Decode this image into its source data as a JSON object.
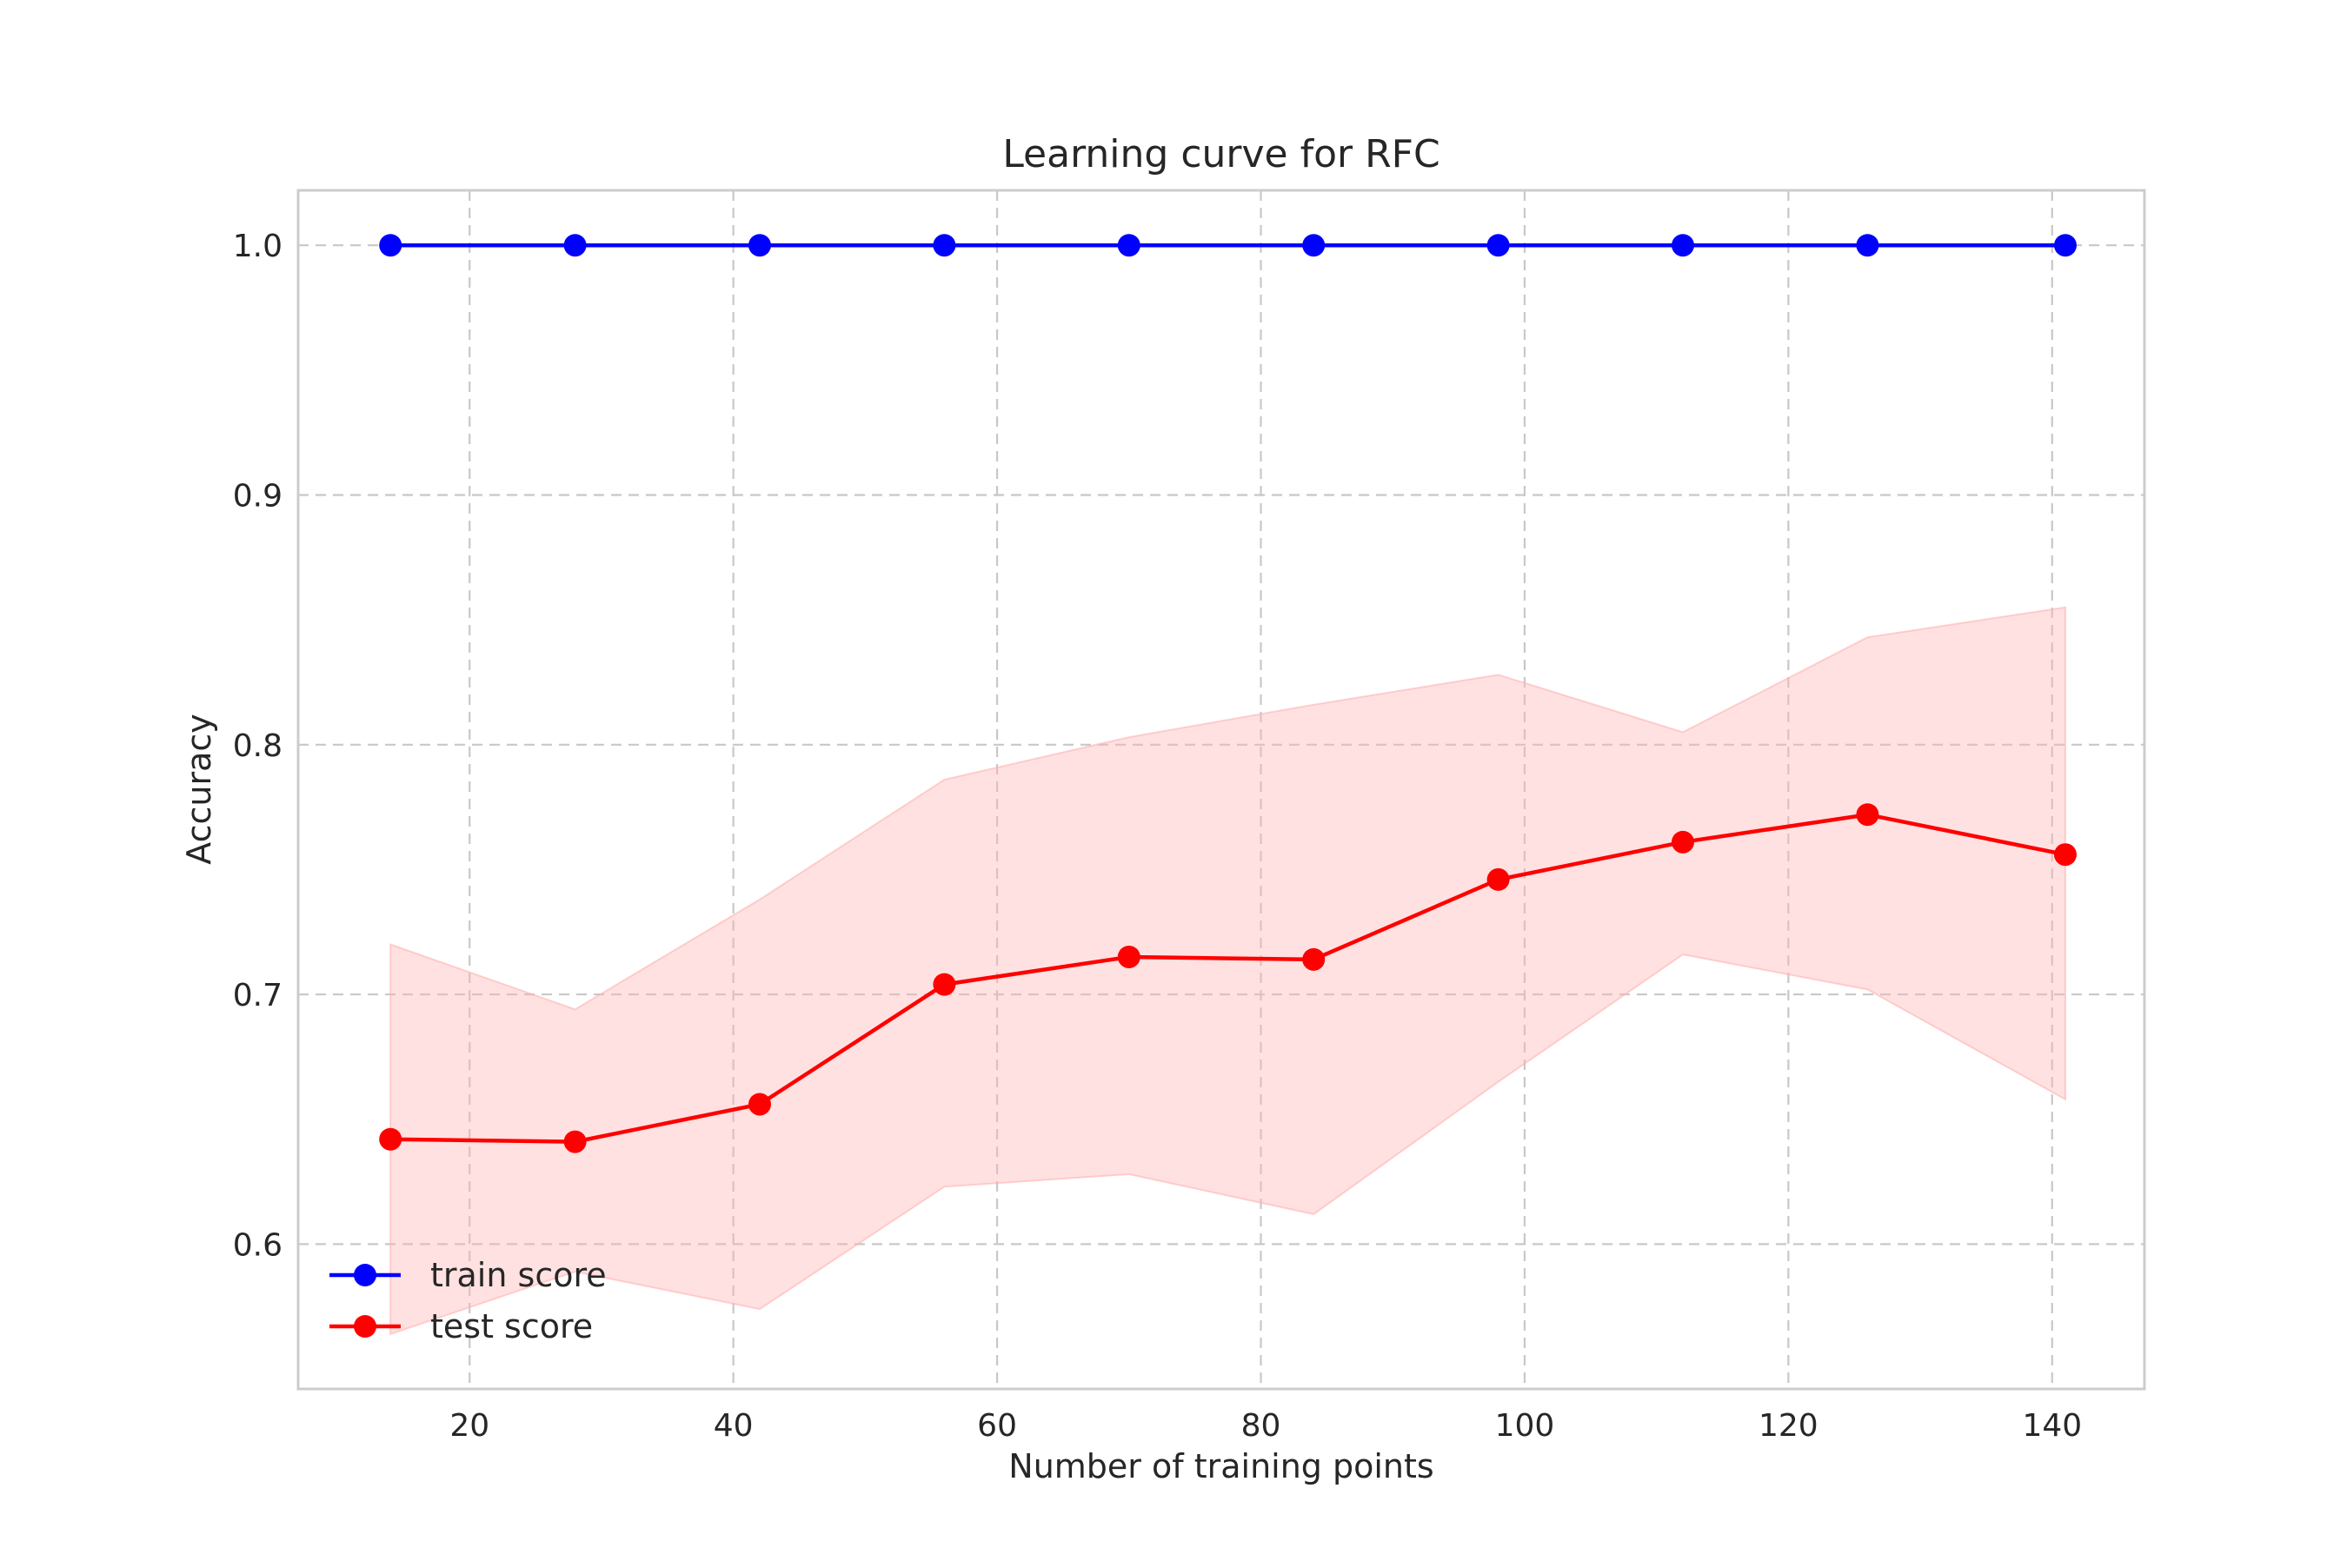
{
  "chart_data": {
    "type": "line",
    "title": "Learning curve for RFC",
    "xlabel": "Number of training points",
    "ylabel": "Accuracy",
    "xlim": [
      7,
      147
    ],
    "ylim": [
      0.542,
      1.022
    ],
    "xticks": [
      20,
      40,
      60,
      80,
      100,
      120,
      140
    ],
    "xtick_labels": [
      "20",
      "40",
      "60",
      "80",
      "100",
      "120",
      "140"
    ],
    "yticks": [
      0.6,
      0.7,
      0.8,
      0.9,
      1.0
    ],
    "ytick_labels": [
      "0.6",
      "0.7",
      "0.8",
      "0.9",
      "1.0"
    ],
    "grid": true,
    "grid_style": "dashed",
    "legend_position": "lower-left",
    "x": [
      14,
      28,
      42,
      56,
      70,
      84,
      98,
      112,
      126,
      141
    ],
    "series": [
      {
        "name": "train score",
        "color": "#0000ff",
        "marker": "circle",
        "values": [
          1.0,
          1.0,
          1.0,
          1.0,
          1.0,
          1.0,
          1.0,
          1.0,
          1.0,
          1.0
        ]
      },
      {
        "name": "test score",
        "color": "#ff0000",
        "marker": "circle",
        "values": [
          0.642,
          0.641,
          0.656,
          0.704,
          0.715,
          0.714,
          0.746,
          0.761,
          0.772,
          0.756
        ],
        "band": {
          "color": "#ffb3b3",
          "lower": [
            0.564,
            0.589,
            0.574,
            0.623,
            0.628,
            0.612,
            0.665,
            0.716,
            0.702,
            0.658
          ],
          "upper": [
            0.72,
            0.694,
            0.738,
            0.786,
            0.803,
            0.816,
            0.828,
            0.805,
            0.843,
            0.855
          ]
        }
      }
    ]
  }
}
